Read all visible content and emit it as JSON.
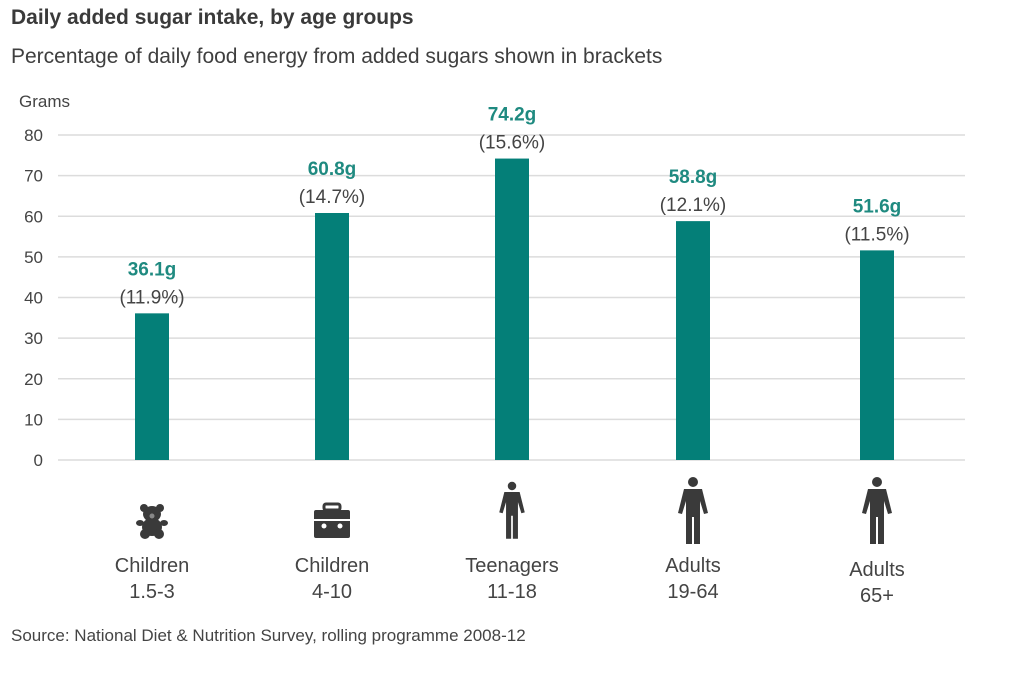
{
  "chart_data": {
    "type": "bar",
    "title": "Daily added sugar intake, by age groups",
    "subtitle": "Percentage of daily food energy from added sugars shown in brackets",
    "ylabel": "Grams",
    "xlabel": "",
    "ylim": [
      0,
      80
    ],
    "yticks": [
      0,
      10,
      20,
      30,
      40,
      50,
      60,
      70,
      80
    ],
    "grid": true,
    "bar_color": "#047f78",
    "value_label_color": "#1f8a80",
    "categories": [
      {
        "line1": "Children",
        "line2": "1.5-3",
        "icon": "teddy-bear-icon"
      },
      {
        "line1": "Children",
        "line2": "4-10",
        "icon": "school-bag-icon"
      },
      {
        "line1": "Teenagers",
        "line2": "11-18",
        "icon": "person-icon"
      },
      {
        "line1": "Adults",
        "line2": "19-64",
        "icon": "person-icon"
      },
      {
        "line1": "Adults",
        "line2": "65+",
        "icon": "person-icon"
      }
    ],
    "values": [
      36.1,
      60.8,
      74.2,
      58.8,
      51.6
    ],
    "value_labels": [
      "36.1g",
      "60.8g",
      "74.2g",
      "58.8g",
      "51.6g"
    ],
    "percent_labels": [
      "(11.9%)",
      "(14.7%)",
      "(15.6%)",
      "(12.1%)",
      "(11.5%)"
    ],
    "source": "Source: National Diet & Nutrition Survey, rolling programme 2008-12"
  }
}
